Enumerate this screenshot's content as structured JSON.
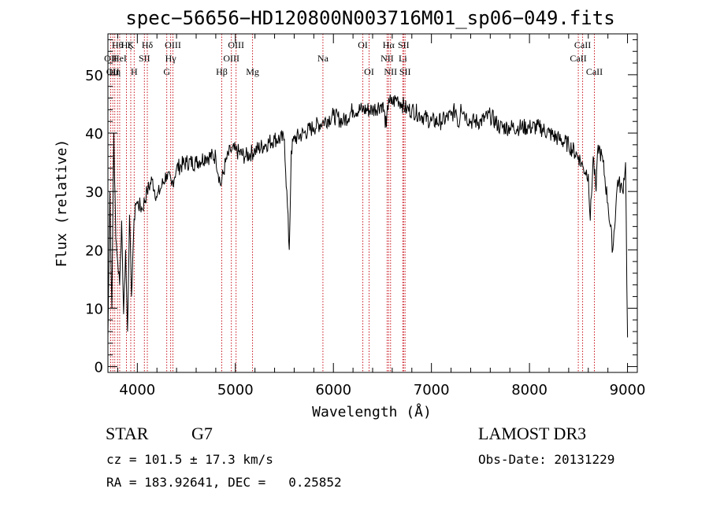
{
  "chart_data": {
    "type": "line",
    "title": "spec−56656−HD120800N003716M01_sp06−049.fits",
    "xlabel": "Wavelength (Å)",
    "ylabel": "Flux (relative)",
    "xlim": [
      3700,
      9100
    ],
    "ylim": [
      -1,
      57
    ],
    "xticks": [
      4000,
      5000,
      6000,
      7000,
      8000,
      9000
    ],
    "yticks": [
      0,
      10,
      20,
      30,
      40,
      50
    ],
    "series": [
      {
        "name": "flux",
        "x": [
          3700,
          3720,
          3740,
          3760,
          3780,
          3800,
          3820,
          3840,
          3860,
          3880,
          3900,
          3920,
          3940,
          3960,
          3980,
          4000,
          4050,
          4100,
          4150,
          4200,
          4250,
          4300,
          4350,
          4400,
          4500,
          4600,
          4700,
          4800,
          4850,
          4900,
          4950,
          5000,
          5100,
          5200,
          5300,
          5400,
          5500,
          5550,
          5570,
          5600,
          5700,
          5800,
          5900,
          6000,
          6100,
          6200,
          6300,
          6400,
          6500,
          6540,
          6563,
          6590,
          6650,
          6700,
          6750,
          6800,
          6900,
          7000,
          7100,
          7200,
          7250,
          7280,
          7300,
          7350,
          7400,
          7500,
          7600,
          7700,
          7800,
          7900,
          8000,
          8100,
          8200,
          8300,
          8400,
          8500,
          8550,
          8600,
          8620,
          8650,
          8680,
          8700,
          8750,
          8800,
          8850,
          8900,
          8950,
          8980,
          9000
        ],
        "values": [
          5,
          30,
          10,
          40,
          22,
          18,
          14,
          25,
          9,
          20,
          6,
          26,
          12,
          22,
          28,
          28,
          27,
          30,
          32,
          29,
          31,
          33,
          31,
          34,
          35,
          35,
          36,
          36,
          31,
          35,
          37,
          37,
          36,
          37,
          38,
          39,
          39,
          20,
          37,
          39,
          40,
          41,
          42,
          43,
          42,
          44,
          44,
          44,
          45,
          41,
          46,
          45,
          46,
          45,
          44,
          44,
          43,
          42,
          42,
          43,
          44,
          41,
          45,
          43,
          42,
          42,
          43,
          41,
          41,
          41,
          41,
          41,
          40,
          39,
          38,
          36,
          34,
          33,
          25,
          36,
          30,
          38,
          35,
          28,
          20,
          32,
          30,
          35,
          5
        ]
      }
    ],
    "line_markers": [
      {
        "lambda": 3728,
        "label": "OII",
        "row": 2
      },
      {
        "lambda": 3750,
        "label": "OII",
        "row": 3
      },
      {
        "lambda": 3770,
        "label": "Hη",
        "row": 3
      },
      {
        "lambda": 3798,
        "label": "Hθ",
        "row": 1
      },
      {
        "lambda": 3820,
        "label": "HeI",
        "row": 2
      },
      {
        "lambda": 3889,
        "label": "Hζ",
        "row": 1
      },
      {
        "lambda": 3933,
        "label": "K",
        "row": 1
      },
      {
        "lambda": 3968,
        "label": "H",
        "row": 3
      },
      {
        "lambda": 4072,
        "label": "SII",
        "row": 2
      },
      {
        "lambda": 4102,
        "label": "Hδ",
        "row": 1
      },
      {
        "lambda": 4300,
        "label": "G",
        "row": 3
      },
      {
        "lambda": 4340,
        "label": "Hγ",
        "row": 2
      },
      {
        "lambda": 4363,
        "label": "OIII",
        "row": 1
      },
      {
        "lambda": 4861,
        "label": "Hβ",
        "row": 3
      },
      {
        "lambda": 4959,
        "label": "OIII",
        "row": 2
      },
      {
        "lambda": 5007,
        "label": "OIII",
        "row": 1
      },
      {
        "lambda": 5175,
        "label": "Mg",
        "row": 3
      },
      {
        "lambda": 5893,
        "label": "Na",
        "row": 2
      },
      {
        "lambda": 6300,
        "label": "OI",
        "row": 1
      },
      {
        "lambda": 6364,
        "label": "OI",
        "row": 3
      },
      {
        "lambda": 6548,
        "label": "NII",
        "row": 2
      },
      {
        "lambda": 6563,
        "label": "Hα",
        "row": 1
      },
      {
        "lambda": 6583,
        "label": "NII",
        "row": 3
      },
      {
        "lambda": 6708,
        "label": "Li",
        "row": 2
      },
      {
        "lambda": 6716,
        "label": "SII",
        "row": 1
      },
      {
        "lambda": 6731,
        "label": "SII",
        "row": 3
      },
      {
        "lambda": 8498,
        "label": "CaII",
        "row": 2
      },
      {
        "lambda": 8542,
        "label": "CaII",
        "row": 1
      },
      {
        "lambda": 8662,
        "label": "CaII",
        "row": 3
      }
    ]
  },
  "info": {
    "class_label": "STAR",
    "subclass": "G7",
    "survey": "LAMOST DR3",
    "cz": "cz = 101.5 ± 17.3 km/s",
    "obs_date": "Obs-Date: 20131229",
    "radec": "RA = 183.92641, DEC =   0.25852"
  },
  "colors": {
    "axes": "#000000",
    "spectrum": "#000000",
    "marker_lines": "#c8141e"
  }
}
